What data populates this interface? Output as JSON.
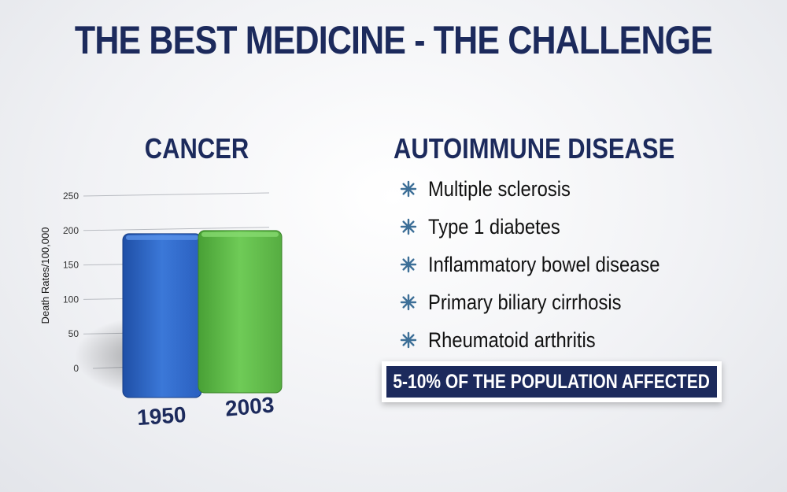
{
  "slide": {
    "title": "THE BEST MEDICINE - THE CHALLENGE",
    "left_heading": "CANCER",
    "right_heading": "AUTOIMMUNE DISEASE",
    "bullets": [
      "Multiple sclerosis",
      "Type 1 diabetes",
      "Inflammatory bowel disease",
      "Primary biliary cirrhosis",
      "Rheumatoid arthritis"
    ],
    "banner": "5-10% OF THE POPULATION AFFECTED",
    "colors": {
      "title": "#1c2a5c",
      "bullet_icon": "#3d6f97",
      "banner_bg": "#1c2a5c"
    }
  },
  "chart_data": {
    "type": "bar",
    "categories": [
      "1950",
      "2003"
    ],
    "values": [
      193,
      193
    ],
    "ylabel": "Death Rates/100,000",
    "ylim": [
      0,
      250
    ],
    "yticks": [
      0,
      50,
      100,
      150,
      200,
      250
    ],
    "grid": true,
    "colors": [
      "#2f68c8",
      "#5fb84a"
    ]
  }
}
